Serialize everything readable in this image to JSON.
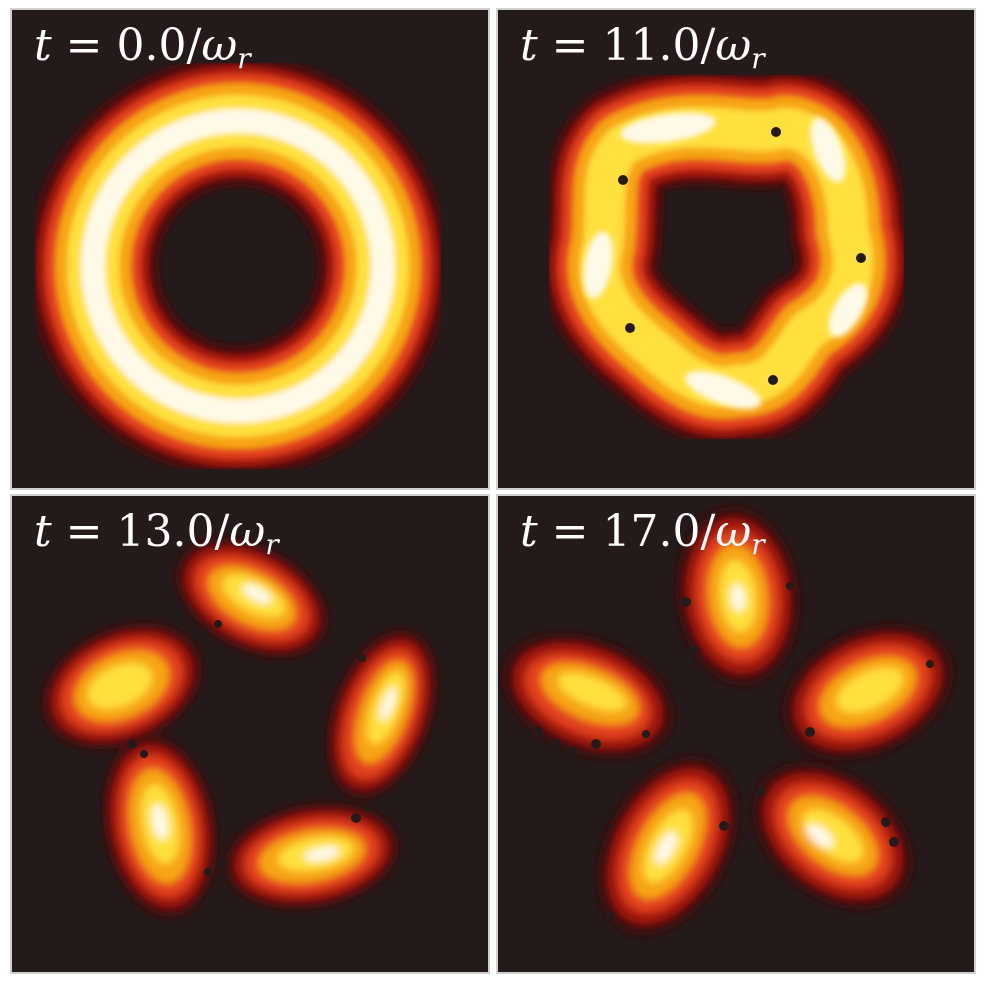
{
  "figure": {
    "background_color": "#241a19",
    "colormap": [
      "#3a0d0a",
      "#8a1410",
      "#d83a12",
      "#f5a010",
      "#ffe23a",
      "#fff8e0"
    ],
    "panels": [
      {
        "label_var": "t",
        "label_eq": " = ",
        "label_value": "0.0",
        "label_sep": "/",
        "label_omega": "ω",
        "label_sub": "r",
        "shape": "ring"
      },
      {
        "label_var": "t",
        "label_eq": " = ",
        "label_value": "11.0",
        "label_sep": "/",
        "label_omega": "ω",
        "label_sub": "r",
        "shape": "pentagon-star"
      },
      {
        "label_var": "t",
        "label_eq": " = ",
        "label_value": "13.0",
        "label_sep": "/",
        "label_omega": "ω",
        "label_sub": "r",
        "shape": "five-lobes-linked"
      },
      {
        "label_var": "t",
        "label_eq": " = ",
        "label_value": "17.0",
        "label_sep": "/",
        "label_omega": "ω",
        "label_sub": "r",
        "shape": "five-lobes-separated"
      }
    ]
  }
}
